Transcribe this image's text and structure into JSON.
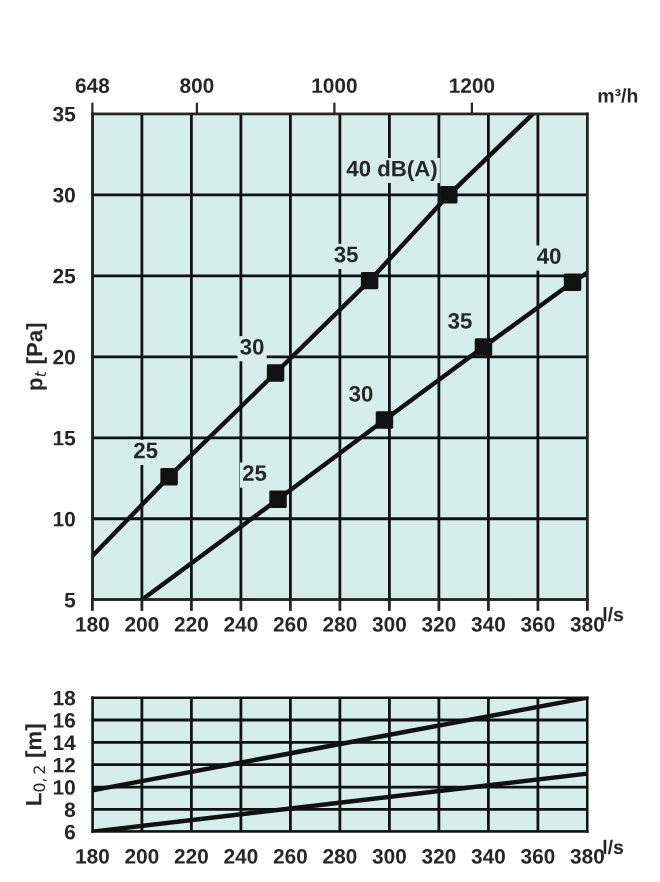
{
  "chart_data": [
    {
      "type": "line",
      "ylabel": "p$_{t}$ [Pa]",
      "xlabel": "l/s",
      "x2label": "m³/h",
      "xlim": [
        180,
        380
      ],
      "xticks": [
        180,
        200,
        220,
        240,
        260,
        280,
        300,
        320,
        340,
        360,
        380
      ],
      "x2lim": [
        648,
        1368
      ],
      "x2ticks": [
        648,
        800,
        1000,
        1200
      ],
      "ylim": [
        5,
        35
      ],
      "yticks": [
        5,
        10,
        15,
        20,
        25,
        30,
        35
      ],
      "grid": true,
      "legend": false,
      "series": [
        {
          "type": "line",
          "color": "#111111",
          "x": [
            180,
            211,
            254,
            292,
            324,
            358
          ],
          "values": [
            7.7,
            12.6,
            19.0,
            24.7,
            30.0,
            35.0
          ]
        },
        {
          "type": "scatter",
          "marker": "square",
          "color": "#111111",
          "x": [
            211,
            254,
            292,
            324
          ],
          "values": [
            12.6,
            19.0,
            24.7,
            30.0
          ]
        },
        {
          "type": "line",
          "color": "#111111",
          "x": [
            200,
            255,
            298,
            338,
            374,
            380
          ],
          "values": [
            5.0,
            11.2,
            16.1,
            20.6,
            24.6,
            25.2
          ]
        },
        {
          "type": "scatter",
          "marker": "square",
          "color": "#111111",
          "x": [
            255,
            298,
            338,
            374
          ],
          "values": [
            11.2,
            16.1,
            20.6,
            24.6
          ]
        }
      ],
      "annotations": [
        {
          "text": "25",
          "x": 211,
          "y": 12.6
        },
        {
          "text": "30",
          "x": 254,
          "y": 19.0
        },
        {
          "text": "35",
          "x": 292,
          "y": 24.7
        },
        {
          "text": "40 dB(A)",
          "x": 324,
          "y": 30.0
        },
        {
          "text": "25",
          "x": 255,
          "y": 11.2
        },
        {
          "text": "30",
          "x": 298,
          "y": 16.1
        },
        {
          "text": "35",
          "x": 338,
          "y": 20.6
        },
        {
          "text": "40",
          "x": 374,
          "y": 24.6
        }
      ]
    },
    {
      "type": "line",
      "ylabel": "L$_{0,2}$ [m]",
      "xlabel": "l/s",
      "xlim": [
        180,
        380
      ],
      "xticks": [
        180,
        200,
        220,
        240,
        260,
        280,
        300,
        320,
        340,
        360,
        380
      ],
      "ylim": [
        6,
        18
      ],
      "yticks": [
        6,
        8,
        10,
        12,
        14,
        16,
        18
      ],
      "grid": true,
      "legend": false,
      "series": [
        {
          "type": "line",
          "color": "#111111",
          "x": [
            180,
            380
          ],
          "values": [
            9.7,
            18.0
          ]
        },
        {
          "type": "line",
          "color": "#111111",
          "x": [
            180,
            380
          ],
          "values": [
            6.0,
            11.2
          ]
        }
      ]
    }
  ]
}
